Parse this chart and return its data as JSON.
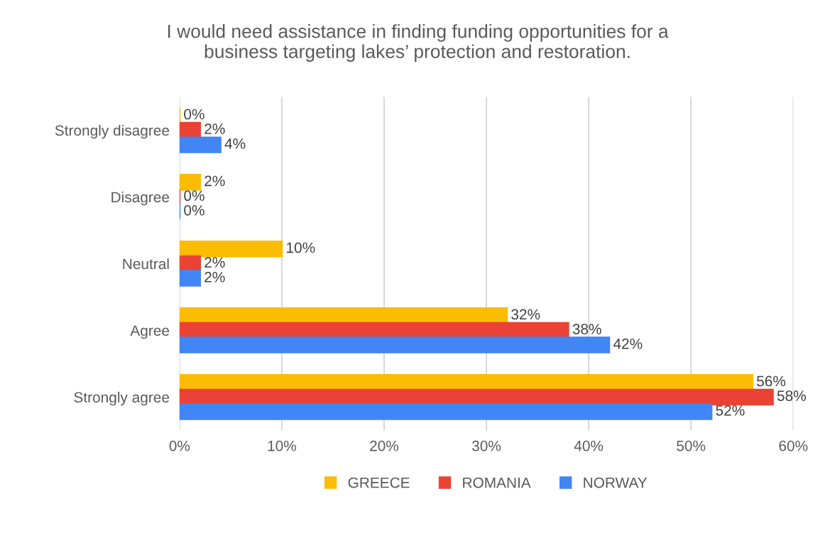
{
  "chart_data": {
    "type": "bar",
    "orientation": "horizontal",
    "title": "I would need assistance in finding funding opportunities for a\nbusiness targeting lakes’ protection and restoration.",
    "categories": [
      "Strongly disagree",
      "Disagree",
      "Neutral",
      "Agree",
      "Strongly agree"
    ],
    "series": [
      {
        "name": "GREECE",
        "color": "#fbbc04",
        "values": [
          0,
          2,
          10,
          32,
          56
        ],
        "value_labels": [
          "0%",
          "2%",
          "10%",
          "32%",
          "56%"
        ]
      },
      {
        "name": "ROMANIA",
        "color": "#ea4335",
        "values": [
          2,
          0,
          2,
          38,
          58
        ],
        "value_labels": [
          "2%",
          "0%",
          "2%",
          "38%",
          "58%"
        ]
      },
      {
        "name": "NORWAY",
        "color": "#4285f4",
        "values": [
          4,
          0,
          2,
          42,
          52
        ],
        "value_labels": [
          "4%",
          "0%",
          "2%",
          "42%",
          "52%"
        ]
      }
    ],
    "xlim": [
      0,
      60
    ],
    "xticks": [
      {
        "value": 0,
        "label": "0%"
      },
      {
        "value": 10,
        "label": "10%"
      },
      {
        "value": 20,
        "label": "20%"
      },
      {
        "value": 30,
        "label": "30%"
      },
      {
        "value": 40,
        "label": "40%"
      },
      {
        "value": 50,
        "label": "50%"
      },
      {
        "value": 60,
        "label": "60%"
      }
    ],
    "grid": "x",
    "legend": "bottom"
  }
}
